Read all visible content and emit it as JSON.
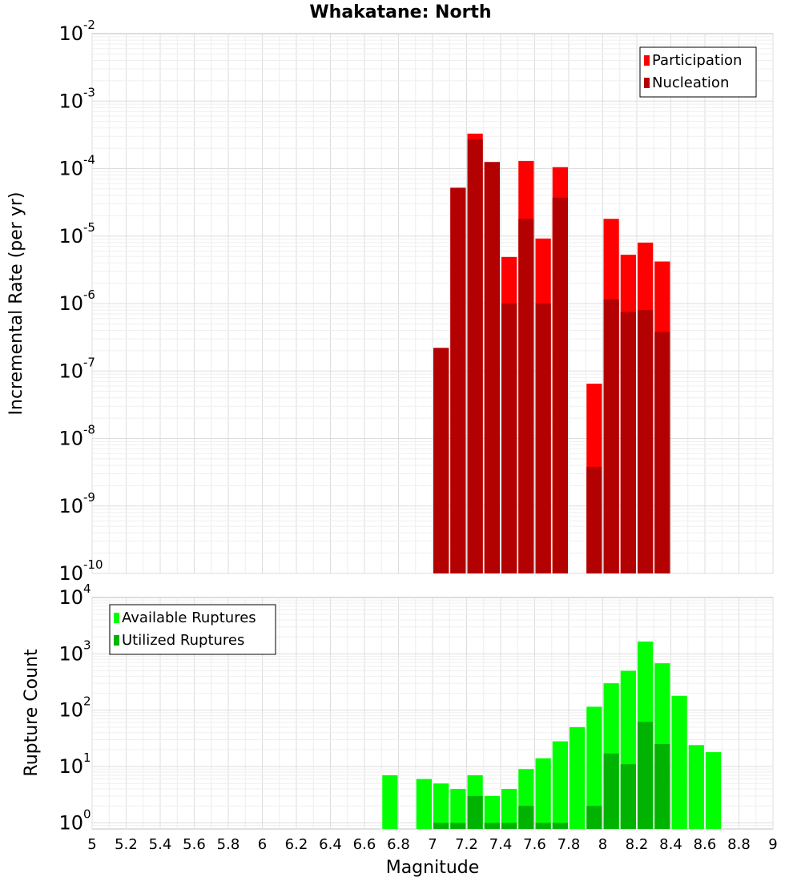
{
  "title": "Whakatane: North",
  "chart_data": [
    {
      "type": "bar",
      "yscale": "log",
      "ylabel": "Incremental Rate (per yr)",
      "xlim": [
        5,
        9
      ],
      "ylim": [
        1e-10,
        0.01
      ],
      "y_tick_base": "10",
      "y_tick_exponents": [
        "-10",
        "-9",
        "-8",
        "-7",
        "-6",
        "-5",
        "-4",
        "-3",
        "-2"
      ],
      "grid": true,
      "legend_position": "top-right",
      "bin_width": 0.1,
      "x": [
        7.05,
        7.15,
        7.25,
        7.35,
        7.45,
        7.55,
        7.65,
        7.75,
        7.85,
        7.95,
        8.05,
        8.15,
        8.25,
        8.35
      ],
      "series": [
        {
          "name": "Participation",
          "color": "#ff0000",
          "values": [
            2.2e-07,
            5.2e-05,
            0.00033,
            0.000125,
            4.9e-06,
            0.00013,
            9.2e-06,
            0.000105,
            null,
            6.5e-08,
            1.8e-05,
            5.3e-06,
            8e-06,
            4.2e-06
          ]
        },
        {
          "name": "Nucleation",
          "color": "#b30000",
          "values": [
            2.2e-07,
            5.2e-05,
            0.00027,
            0.000125,
            1e-06,
            1.8e-05,
            1e-06,
            3.7e-05,
            null,
            3.8e-09,
            1.15e-06,
            7.5e-07,
            8e-07,
            3.8e-07
          ]
        }
      ]
    },
    {
      "type": "bar",
      "yscale": "log",
      "xlabel": "Magnitude",
      "ylabel": "Rupture Count",
      "xlim": [
        5,
        9
      ],
      "ylim": [
        0.78,
        10000
      ],
      "x_ticks": [
        "5",
        "5.2",
        "5.4",
        "5.6",
        "5.8",
        "6",
        "6.2",
        "6.4",
        "6.6",
        "6.8",
        "7",
        "7.2",
        "7.4",
        "7.6",
        "7.8",
        "8",
        "8.2",
        "8.4",
        "8.6",
        "8.8",
        "9"
      ],
      "y_tick_base": "10",
      "y_tick_exponents": [
        "0",
        "1",
        "2",
        "3",
        "4"
      ],
      "grid": true,
      "legend_position": "top-left",
      "bin_width": 0.1,
      "x": [
        6.75,
        6.85,
        6.95,
        7.05,
        7.15,
        7.25,
        7.35,
        7.45,
        7.55,
        7.65,
        7.75,
        7.85,
        7.95,
        8.05,
        8.15,
        8.25,
        8.35,
        8.45,
        8.55,
        8.65
      ],
      "series": [
        {
          "name": "Available Ruptures",
          "color": "#00ff00",
          "values": [
            7,
            null,
            6,
            5,
            4,
            7,
            3,
            4,
            9,
            14,
            28,
            50,
            115,
            300,
            500,
            1650,
            680,
            180,
            24,
            18
          ]
        },
        {
          "name": "Utilized Ruptures",
          "color": "#00b300",
          "values": [
            null,
            null,
            null,
            1,
            1,
            3,
            1,
            1,
            2,
            1,
            1,
            null,
            2,
            17,
            11,
            62,
            25,
            null,
            null,
            null
          ]
        }
      ]
    }
  ]
}
